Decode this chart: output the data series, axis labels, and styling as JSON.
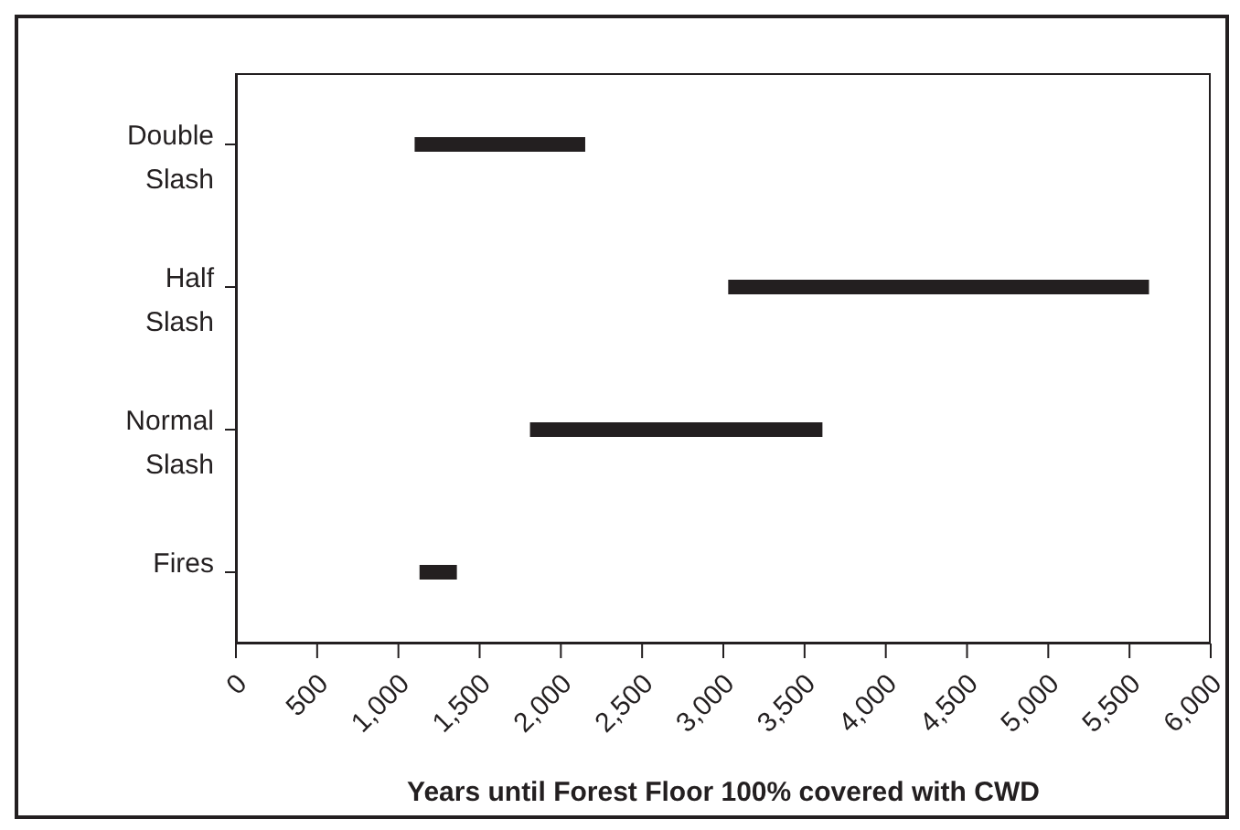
{
  "chart_data": {
    "type": "bar",
    "orientation": "horizontal",
    "xlabel": "Years until Forest Floor 100% covered with CWD",
    "categories": [
      "Double Slash",
      "Half Slash",
      "Normal Slash",
      "Fires"
    ],
    "base": [
      1100,
      3030,
      1810,
      1130
    ],
    "values": [
      1050,
      2590,
      1800,
      230
    ],
    "color": "#231f20",
    "xlim": [
      0,
      6000
    ],
    "xticks": [
      {
        "value": 0,
        "label": "0"
      },
      {
        "value": 500,
        "label": "500"
      },
      {
        "value": 1000,
        "label": "1,000"
      },
      {
        "value": 1500,
        "label": "1,500"
      },
      {
        "value": 2000,
        "label": "2,000"
      },
      {
        "value": 2500,
        "label": "2,500"
      },
      {
        "value": 3000,
        "label": "3,000"
      },
      {
        "value": 3500,
        "label": "3,500"
      },
      {
        "value": 4000,
        "label": "4,000"
      },
      {
        "value": 4500,
        "label": "4,500"
      },
      {
        "value": 5000,
        "label": "5,000"
      },
      {
        "value": 5500,
        "label": "5,500"
      },
      {
        "value": 6000,
        "label": "6,000"
      }
    ],
    "grid": false,
    "legend": false
  }
}
